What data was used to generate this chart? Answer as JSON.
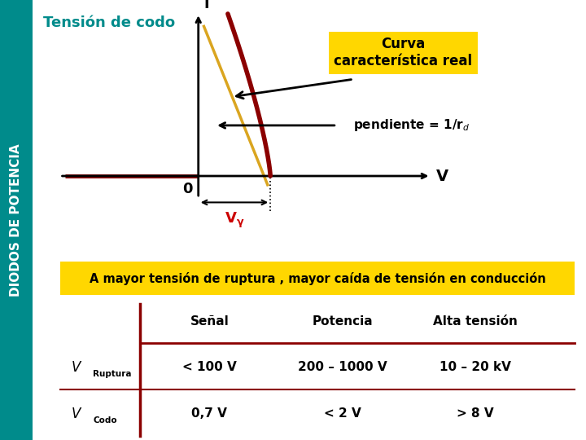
{
  "title": "Tensión de codo",
  "title_color": "#008B8B",
  "side_label": "DIODOS DE POTENCIA",
  "side_bg": "#008B8B",
  "curve_color": "#8B0000",
  "tangent_color": "#DAA520",
  "bg_color": "#FFFFFF",
  "banner_color": "#FFD700",
  "banner_text": "A mayor tensión de ruptura , mayor caída de tensión en conducción",
  "banner_text_color": "#000000",
  "label_curva": "Curva\ncaracterística real",
  "label_i": "i",
  "label_V": "V",
  "label_0": "0",
  "label_Vgamma": "Vγ",
  "table_header": [
    "Señal",
    "Potencia",
    "Alta tensión"
  ],
  "row1_label_main": "V",
  "row1_label_sub": "Ruptura",
  "row1_data": [
    "< 100 V",
    "200 – 1000 V",
    "10 – 20 kV"
  ],
  "row2_label_main": "V",
  "row2_label_sub": "Codo",
  "row2_data": [
    "0,7 V",
    "< 2 V",
    "> 8 V"
  ],
  "sep_color": "#8B0000",
  "line_color": "#8B0000"
}
